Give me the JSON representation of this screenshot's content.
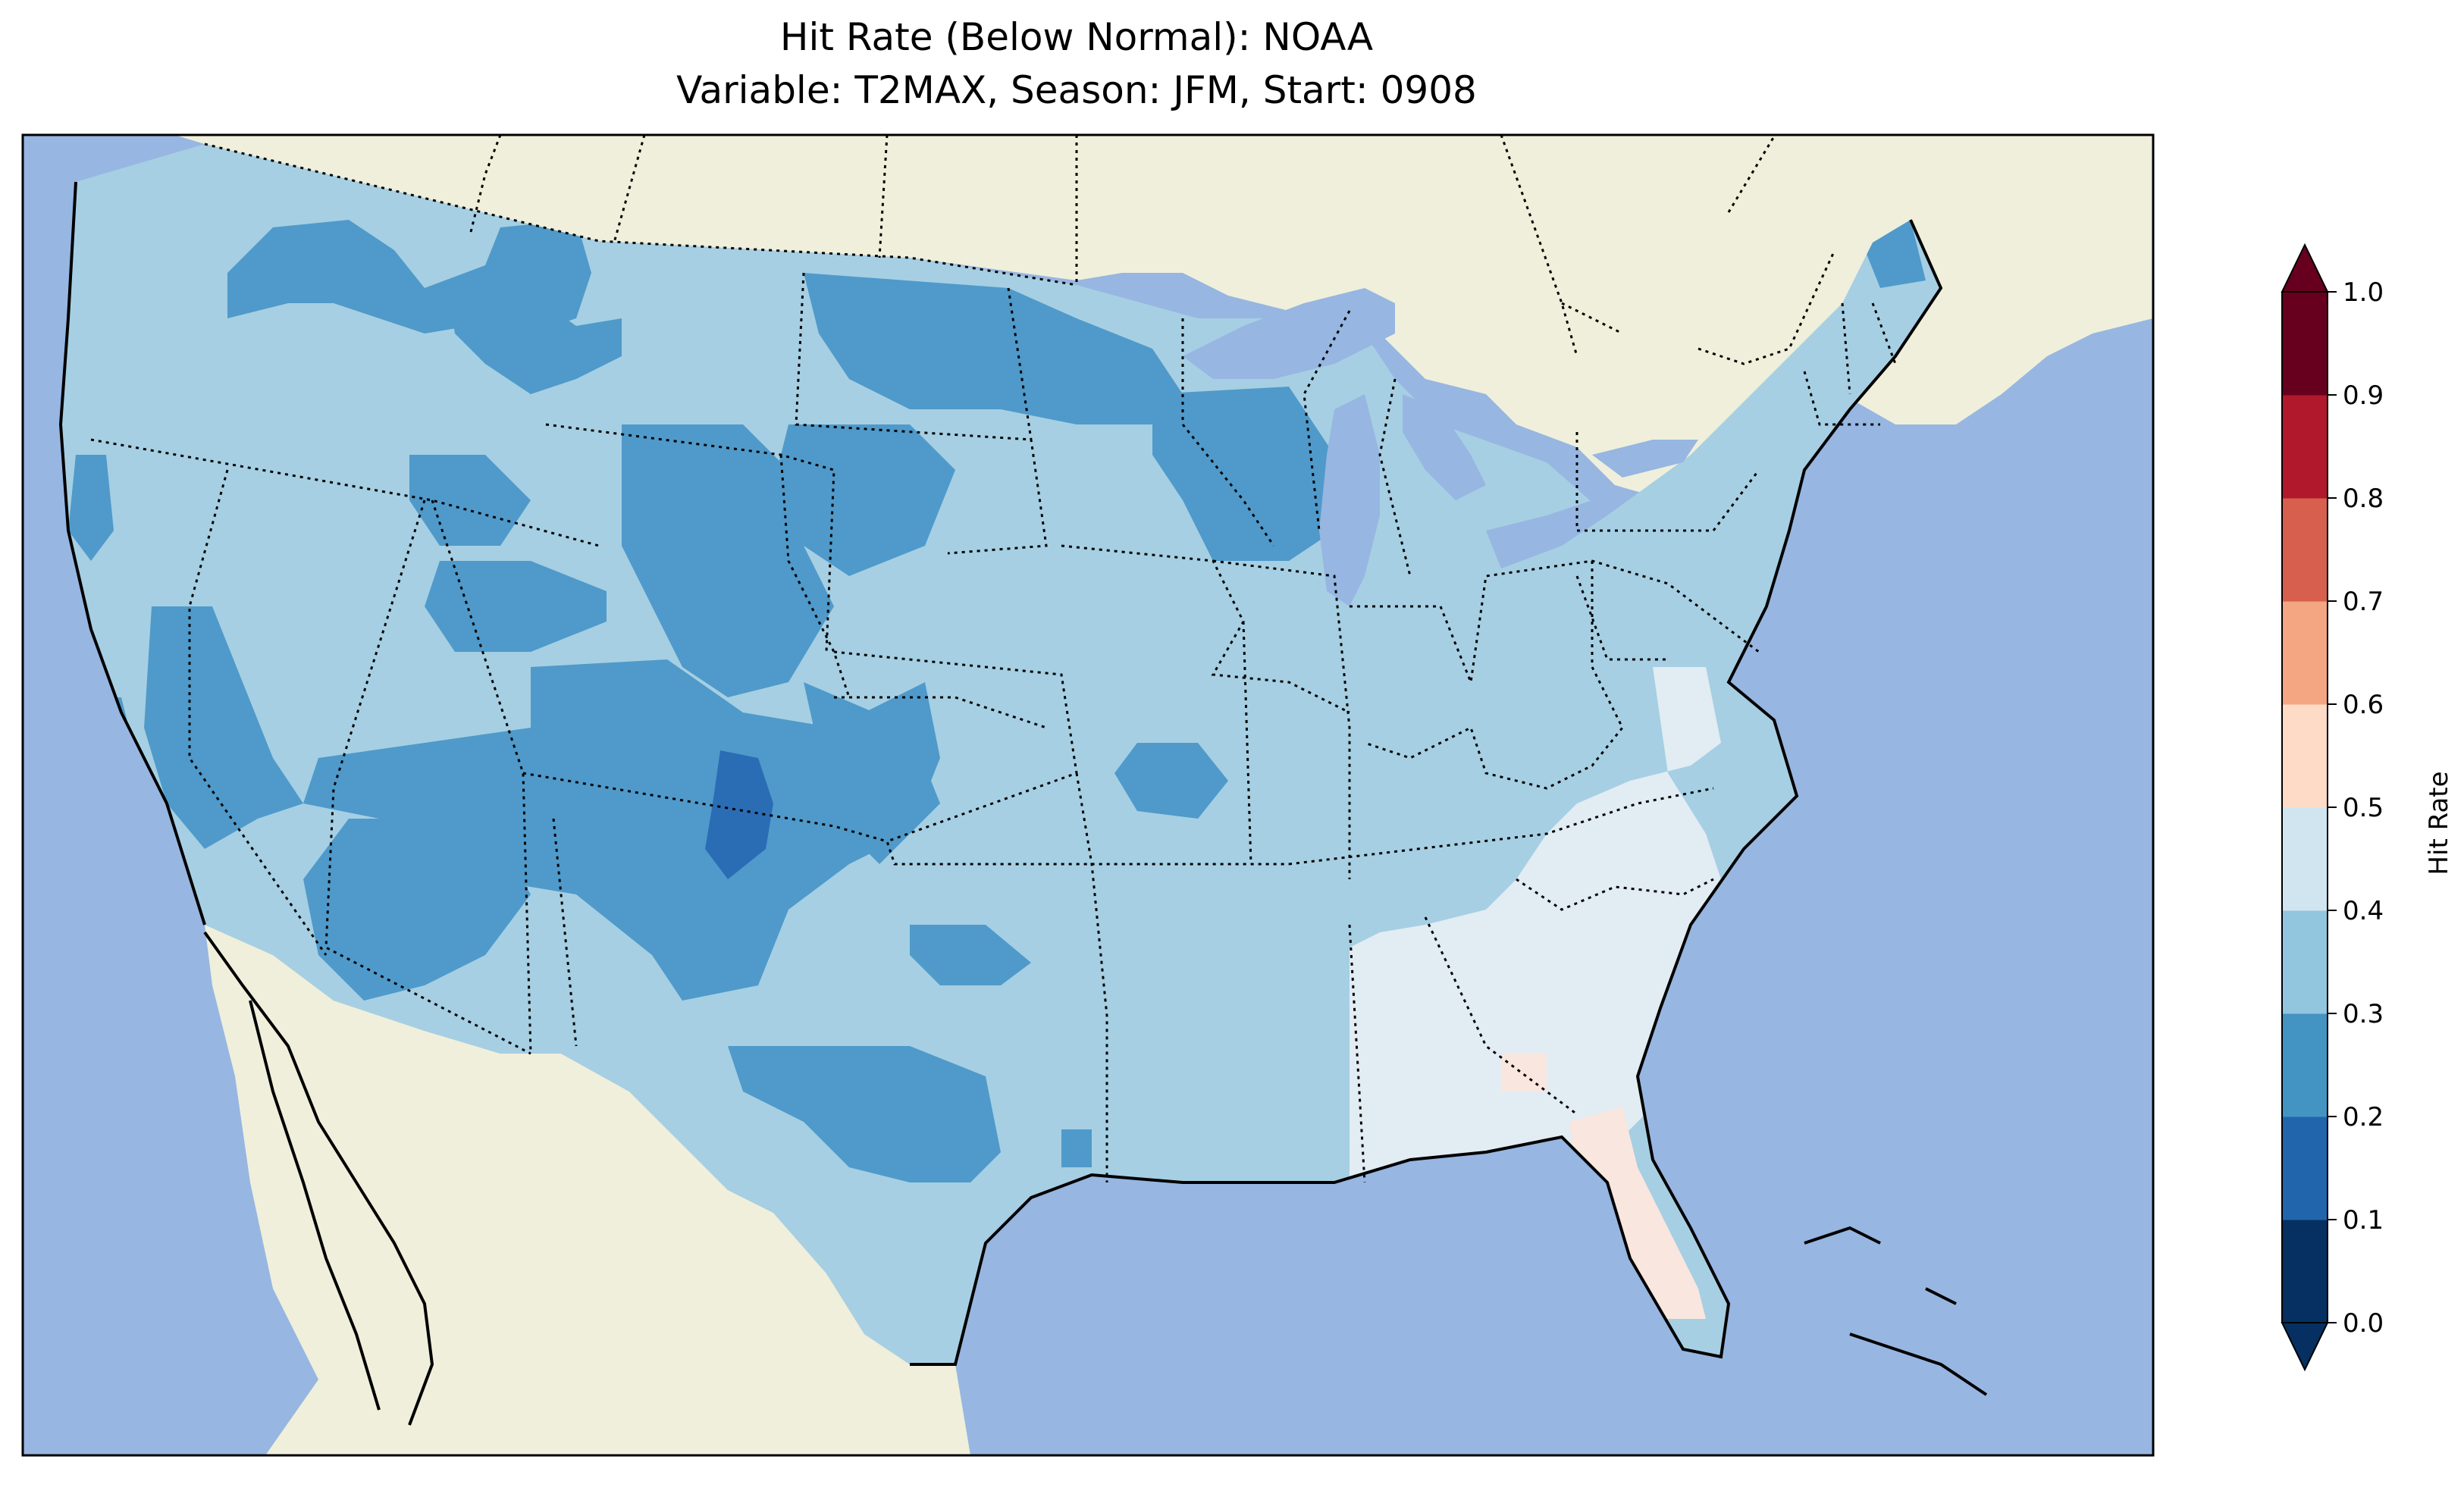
{
  "title": {
    "line1": "Hit Rate (Below Normal): NOAA",
    "line2": "Variable: T2MAX, Season: JFM, Start: 0908"
  },
  "colorbar": {
    "label": "Hit Rate",
    "ticks": [
      "0.0",
      "0.1",
      "0.2",
      "0.3",
      "0.4",
      "0.5",
      "0.6",
      "0.7",
      "0.8",
      "0.9",
      "1.0"
    ],
    "colors": [
      "#053061",
      "#2166ac",
      "#4393c3",
      "#92c5de",
      "#d1e5f0",
      "#fddbc7",
      "#f4a582",
      "#d6604d",
      "#b2182b",
      "#67001f"
    ],
    "range": [
      0.0,
      1.0
    ],
    "extend": "both",
    "under_color": "#053061",
    "over_color": "#67001f"
  },
  "map": {
    "ocean_color": "#97b6e1",
    "land_color": "#efefdb",
    "region": "Contiguous United States",
    "levels": {
      "0.2-0.3": "#4f9aca",
      "0.3-0.4": "#a6cfe3",
      "0.4-0.5": "#e2ecf3",
      "0.5-0.6": "#f8e6df",
      "0.1-0.2": "#2a6db5"
    }
  }
}
